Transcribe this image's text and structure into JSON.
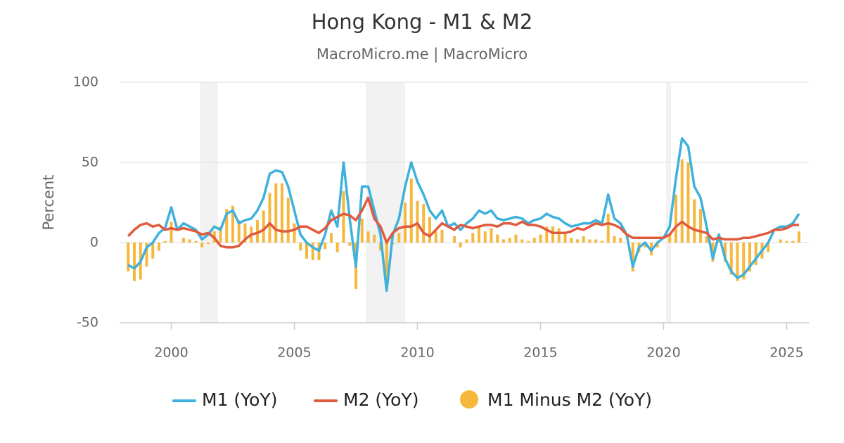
{
  "chart_data": {
    "type": "line",
    "title": "Hong Kong - M1 & M2",
    "subtitle": "MacroMicro.me | MacroMicro",
    "y_label": "Percent",
    "x": [
      1998.25,
      1998.5,
      1998.75,
      1999,
      1999.25,
      1999.5,
      1999.75,
      2000,
      2000.25,
      2000.5,
      2000.75,
      2001,
      2001.25,
      2001.5,
      2001.75,
      2002,
      2002.25,
      2002.5,
      2002.75,
      2003,
      2003.25,
      2003.5,
      2003.75,
      2004,
      2004.25,
      2004.5,
      2004.75,
      2005,
      2005.25,
      2005.5,
      2005.75,
      2006,
      2006.25,
      2006.5,
      2006.75,
      2007,
      2007.25,
      2007.5,
      2007.75,
      2008,
      2008.25,
      2008.5,
      2008.75,
      2009,
      2009.25,
      2009.5,
      2009.75,
      2010,
      2010.25,
      2010.5,
      2010.75,
      2011,
      2011.25,
      2011.5,
      2011.75,
      2012,
      2012.25,
      2012.5,
      2012.75,
      2013,
      2013.25,
      2013.5,
      2013.75,
      2014,
      2014.25,
      2014.5,
      2014.75,
      2015,
      2015.25,
      2015.5,
      2015.75,
      2016,
      2016.25,
      2016.5,
      2016.75,
      2017,
      2017.25,
      2017.5,
      2017.75,
      2018,
      2018.25,
      2018.5,
      2018.75,
      2019,
      2019.25,
      2019.5,
      2019.75,
      2020,
      2020.25,
      2020.5,
      2020.75,
      2021,
      2021.25,
      2021.5,
      2021.75,
      2022,
      2022.25,
      2022.5,
      2022.75,
      2023,
      2023.25,
      2023.5,
      2023.75,
      2024,
      2024.25,
      2024.5,
      2024.75,
      2025,
      2025.25,
      2025.5
    ],
    "series": [
      {
        "name": "M1 (YoY)",
        "color": "#3eb1dc",
        "kind": "line",
        "values": [
          -14,
          -16,
          -12,
          -3,
          0,
          6,
          9,
          22,
          8,
          12,
          10,
          8,
          2,
          5,
          10,
          8,
          18,
          20,
          12,
          14,
          15,
          20,
          28,
          43,
          45,
          44,
          35,
          20,
          5,
          0,
          -3,
          -5,
          5,
          20,
          10,
          50,
          15,
          -15,
          35,
          35,
          20,
          5,
          -30,
          5,
          15,
          35,
          50,
          38,
          30,
          20,
          15,
          20,
          10,
          12,
          8,
          12,
          15,
          20,
          18,
          20,
          15,
          14,
          15,
          16,
          15,
          12,
          14,
          15,
          18,
          16,
          15,
          12,
          10,
          11,
          12,
          12,
          14,
          12,
          30,
          15,
          12,
          5,
          -15,
          -3,
          0,
          -5,
          0,
          3,
          10,
          40,
          65,
          60,
          35,
          28,
          10,
          -10,
          5,
          -10,
          -18,
          -22,
          -20,
          -15,
          -10,
          -5,
          0,
          8,
          10,
          10,
          12,
          18
        ]
      },
      {
        "name": "M2 (YoY)",
        "color": "#e05a3e",
        "kind": "line",
        "values": [
          4,
          8,
          11,
          12,
          10,
          11,
          8,
          9,
          8,
          9,
          8,
          7,
          5,
          6,
          3,
          -2,
          -3,
          -3,
          -2,
          2,
          5,
          6,
          8,
          12,
          8,
          7,
          7,
          8,
          10,
          10,
          8,
          6,
          9,
          14,
          16,
          18,
          17,
          14,
          20,
          28,
          15,
          10,
          0,
          6,
          9,
          10,
          10,
          12,
          6,
          4,
          8,
          12,
          10,
          8,
          11,
          10,
          9,
          10,
          11,
          11,
          10,
          12,
          12,
          11,
          13,
          11,
          11,
          10,
          8,
          6,
          6,
          6,
          7,
          9,
          8,
          10,
          12,
          11,
          12,
          11,
          9,
          5,
          3,
          3,
          3,
          3,
          3,
          3,
          5,
          10,
          13,
          10,
          8,
          7,
          6,
          2,
          3,
          2,
          2,
          2,
          3,
          3,
          4,
          5,
          6,
          8,
          8,
          9,
          11,
          11
        ]
      },
      {
        "name": "M1 Minus M2 (YoY)",
        "color": "#f5b83d",
        "kind": "bar",
        "values": [
          -18,
          -24,
          -23,
          -15,
          -10,
          -5,
          1,
          13,
          0,
          3,
          2,
          1,
          -3,
          -1,
          7,
          10,
          21,
          23,
          14,
          12,
          10,
          14,
          20,
          31,
          37,
          37,
          28,
          12,
          -5,
          -10,
          -11,
          -11,
          -4,
          6,
          -6,
          32,
          -2,
          -29,
          15,
          7,
          5,
          -5,
          -30,
          -1,
          6,
          25,
          40,
          26,
          24,
          16,
          7,
          8,
          0,
          4,
          -3,
          2,
          6,
          10,
          7,
          9,
          5,
          2,
          3,
          5,
          2,
          1,
          3,
          5,
          10,
          10,
          9,
          6,
          3,
          2,
          4,
          2,
          2,
          1,
          18,
          4,
          3,
          0,
          -18,
          -6,
          -3,
          -8,
          -3,
          0,
          5,
          30,
          52,
          50,
          27,
          21,
          4,
          -12,
          2,
          -12,
          -20,
          -24,
          -23,
          -18,
          -14,
          -10,
          -6,
          0,
          2,
          1,
          1,
          7
        ]
      }
    ],
    "shaded_ranges": [
      [
        2001.17,
        2001.9
      ],
      [
        2007.9,
        2009.5
      ],
      [
        2020.1,
        2020.3
      ]
    ],
    "xlim": [
      1997.9,
      2025.9
    ],
    "xticks": [
      2000,
      2005,
      2010,
      2015,
      2020,
      2025
    ],
    "ylim": [
      -50,
      100
    ],
    "yticks": [
      -50,
      0,
      50,
      100
    ],
    "grid": true
  }
}
